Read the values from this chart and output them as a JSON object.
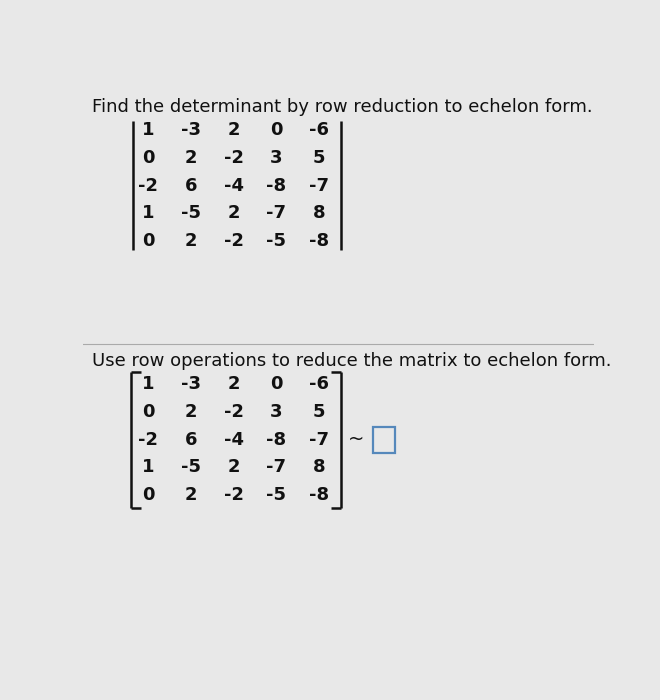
{
  "title1": "Find the determinant by row reduction to echelon form.",
  "title2": "Use row operations to reduce the matrix to echelon form.",
  "matrix": [
    [
      "1",
      "-3",
      "2",
      "0",
      "-6"
    ],
    [
      "0",
      "2",
      "-2",
      "3",
      "5"
    ],
    [
      "-2",
      "6",
      "-4",
      "-8",
      "-7"
    ],
    [
      "1",
      "-5",
      "2",
      "-7",
      "8"
    ],
    [
      "0",
      "2",
      "-2",
      "-5",
      "-8"
    ]
  ],
  "bg_color": "#e8e8e8",
  "text_color": "#111111",
  "title_fontsize": 13.0,
  "matrix_fontsize": 13.0,
  "tilde_fontsize": 14.0,
  "box_color": "#5588bb"
}
